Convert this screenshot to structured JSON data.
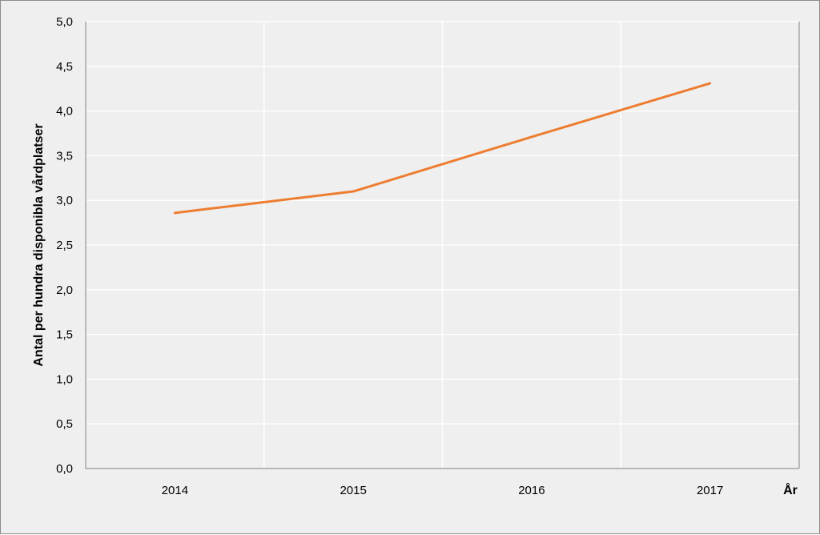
{
  "chart_data": {
    "type": "line",
    "title": "",
    "xlabel": "År",
    "ylabel": "Antal per hundra disponibla vårdplatser",
    "categories": [
      "2014",
      "2015",
      "2016",
      "2017"
    ],
    "series": [
      {
        "values": [
          2.86,
          3.1,
          3.71,
          4.31
        ]
      }
    ],
    "ylim": [
      0,
      5
    ],
    "yticks": [
      "0,0",
      "0,5",
      "1,0",
      "1,5",
      "2,0",
      "2,5",
      "3,0",
      "3,5",
      "4,0",
      "4,5",
      "5,0"
    ],
    "grid": true,
    "legend": "none",
    "colors": {
      "series": "#ed7d31",
      "grid": "#ffffff",
      "axis": "#808080",
      "background": "#efefef"
    }
  }
}
